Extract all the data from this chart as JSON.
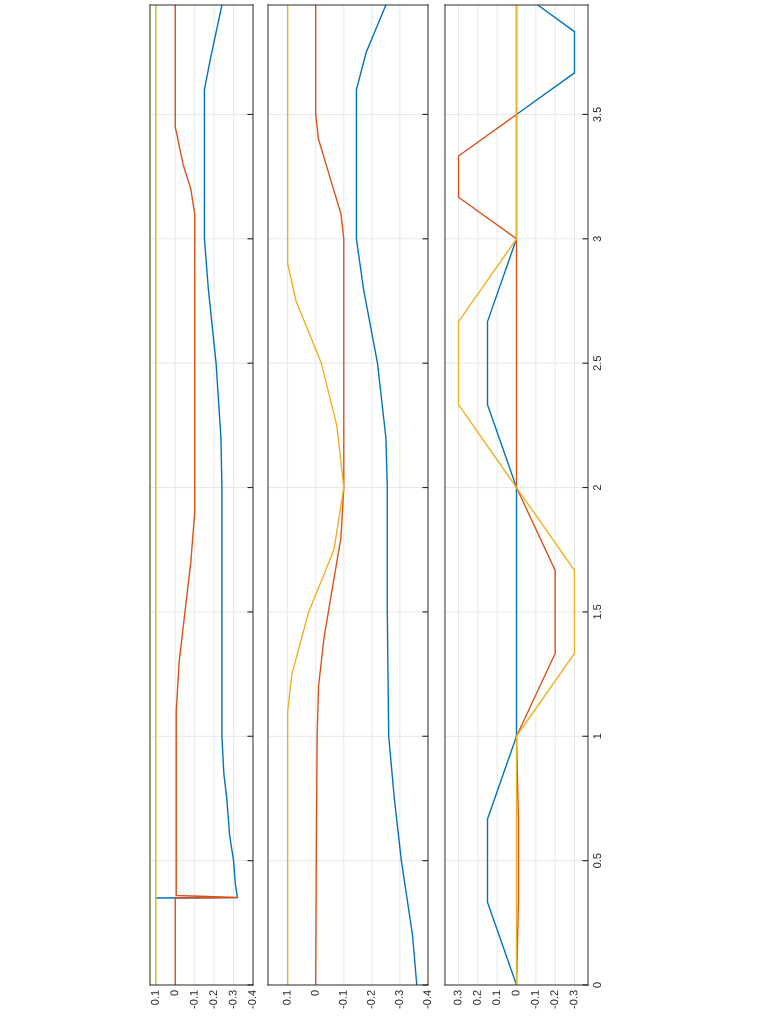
{
  "chart_data": [
    {
      "type": "line",
      "ylim": [
        0,
        3.94
      ],
      "yticks": [
        0,
        0.5,
        1,
        1.5,
        2,
        2.5,
        3,
        3.5
      ],
      "xlim": [
        0.13,
        -0.4
      ],
      "xticks": [
        0.1,
        0,
        -0.1,
        -0.2,
        -0.3,
        -0.4
      ],
      "grid": true,
      "tick_labels": "x",
      "series": [
        {
          "color": "#0072bd",
          "values": [
            0.35,
            0.352,
            0.4,
            0.5,
            0.6,
            0.75,
            0.85,
            1.0,
            1.5,
            2.0,
            2.2,
            2.5,
            2.8,
            3.0,
            3.3,
            3.6,
            3.72,
            3.94
          ],
          "x": [
            0.1,
            -0.32,
            -0.31,
            -0.3,
            -0.28,
            -0.265,
            -0.25,
            -0.24,
            -0.24,
            -0.24,
            -0.235,
            -0.21,
            -0.17,
            -0.15,
            -0.15,
            -0.15,
            -0.18,
            -0.24
          ]
        },
        {
          "color": "#d95319",
          "values": [
            0,
            0.35,
            0.352,
            0.36,
            0.6,
            1.1,
            1.3,
            1.5,
            1.7,
            1.9,
            2.2,
            2.7,
            3.1,
            3.2,
            3.3,
            3.45,
            3.94
          ],
          "x": [
            0,
            0,
            -0.32,
            -0.005,
            -0.005,
            -0.005,
            -0.02,
            -0.05,
            -0.08,
            -0.1,
            -0.1,
            -0.1,
            -0.1,
            -0.08,
            -0.04,
            0,
            0
          ]
        },
        {
          "color": "#edb120",
          "values": [
            0,
            3.94
          ],
          "x": [
            0.1,
            0.1
          ]
        }
      ]
    },
    {
      "type": "line",
      "ylim": [
        0,
        3.94
      ],
      "yticks": [
        0,
        0.5,
        1,
        1.5,
        2,
        2.5,
        3,
        3.5
      ],
      "xlim": [
        0.17,
        -0.4
      ],
      "xticks": [
        0.1,
        0,
        -0.1,
        -0.2,
        -0.3,
        -0.4
      ],
      "grid": true,
      "tick_labels": "x",
      "series": [
        {
          "color": "#0072bd",
          "values": [
            0,
            0.2,
            0.5,
            0.75,
            1.0,
            1.5,
            2.0,
            2.2,
            2.5,
            2.8,
            3.0,
            3.3,
            3.6,
            3.75,
            3.94
          ],
          "x": [
            -0.36,
            -0.345,
            -0.305,
            -0.28,
            -0.26,
            -0.255,
            -0.255,
            -0.25,
            -0.22,
            -0.17,
            -0.145,
            -0.145,
            -0.145,
            -0.18,
            -0.25
          ]
        },
        {
          "color": "#d95319",
          "values": [
            0,
            0.5,
            1.0,
            1.2,
            1.4,
            1.6,
            1.8,
            2.0,
            2.5,
            3.0,
            3.1,
            3.25,
            3.4,
            3.5,
            3.94
          ],
          "x": [
            0,
            -0.002,
            -0.005,
            -0.01,
            -0.03,
            -0.06,
            -0.09,
            -0.1,
            -0.1,
            -0.1,
            -0.09,
            -0.05,
            -0.01,
            0,
            0
          ]
        },
        {
          "color": "#edb120",
          "values": [
            0,
            1.1,
            1.25,
            1.5,
            1.75,
            2.0,
            2.25,
            2.5,
            2.75,
            2.9,
            3.94
          ],
          "x": [
            0.1,
            0.1,
            0.085,
            0.025,
            -0.065,
            -0.1,
            -0.075,
            -0.02,
            0.07,
            0.1,
            0.1
          ]
        }
      ]
    },
    {
      "type": "line",
      "ylim": [
        0,
        3.94
      ],
      "yticks": [
        0,
        0.5,
        1,
        1.5,
        2,
        2.5,
        3,
        3.5
      ],
      "xlim": [
        0.37,
        -0.37
      ],
      "xticks": [
        0.3,
        0.2,
        0.1,
        0,
        -0.1,
        -0.2,
        -0.3
      ],
      "grid": true,
      "series": [
        {
          "color": "#0072bd",
          "values": [
            0,
            0.333,
            0.667,
            1,
            2,
            2.333,
            2.667,
            3,
            3.5,
            3.667,
            3.833,
            3.94
          ],
          "x": [
            0,
            0.15,
            0.15,
            0,
            0,
            0.15,
            0.15,
            0,
            0,
            -0.3,
            -0.3,
            -0.11
          ]
        },
        {
          "color": "#d95319",
          "values": [
            0,
            0.333,
            0.667,
            1,
            1.333,
            1.667,
            2,
            3,
            3.167,
            3.333,
            3.5,
            3.94
          ],
          "x": [
            0,
            -0.01,
            -0.01,
            0,
            -0.2,
            -0.2,
            0,
            0,
            0.3,
            0.3,
            0,
            0
          ]
        },
        {
          "color": "#edb120",
          "values": [
            0,
            1,
            1.333,
            1.667,
            2,
            2.333,
            2.667,
            3,
            3.94
          ],
          "x": [
            0,
            0,
            -0.3,
            -0.3,
            0,
            0.3,
            0.3,
            0,
            0
          ]
        }
      ]
    }
  ]
}
